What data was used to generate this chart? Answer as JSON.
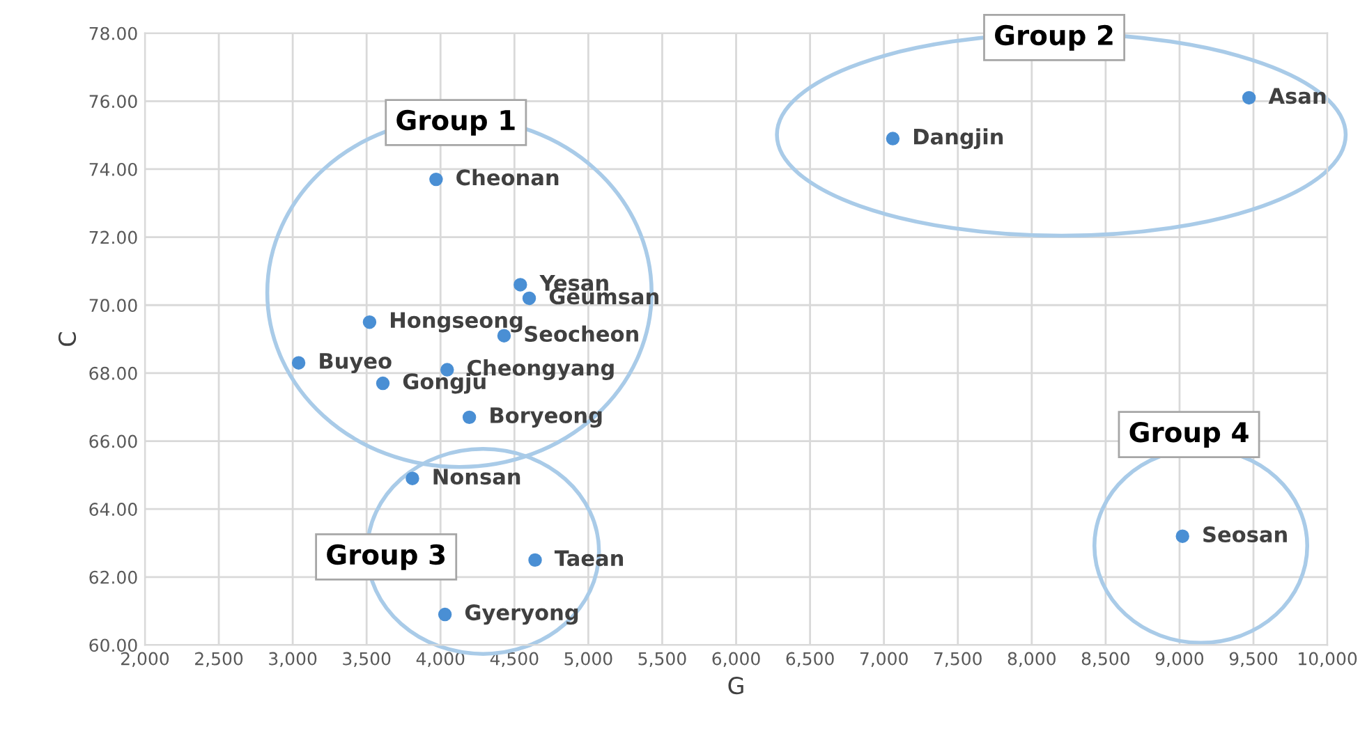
{
  "chart_data": {
    "type": "scatter",
    "xlabel": "G",
    "ylabel": "C",
    "x": [
      9470,
      7060,
      3970,
      4540,
      4600,
      3520,
      4430,
      3040,
      4045,
      3610,
      4195,
      3810,
      4640,
      4030,
      9020
    ],
    "series": [
      {
        "color": "#4a8fd4",
        "values": [
          76.1,
          74.9,
          73.7,
          70.6,
          70.2,
          69.5,
          69.1,
          68.3,
          68.1,
          67.7,
          66.7,
          64.9,
          62.5,
          60.9,
          63.2
        ]
      }
    ],
    "value_labels": [
      "Asan",
      "Dangjin",
      "Cheonan",
      "Yesan",
      "Geumsan",
      "Hongseong",
      "Seocheon",
      "Buyeo",
      "Cheongyang",
      "Gongju",
      "Boryeong",
      "Nonsan",
      "Taean",
      "Gyeryong",
      "Seosan"
    ],
    "annotations": [
      "Group 1",
      "Group 2",
      "Group 3",
      "Group 4"
    ],
    "xlim": [
      2000,
      10000
    ],
    "xticks": [
      {
        "value": 2000,
        "label": "2,000"
      },
      {
        "value": 2500,
        "label": "2,500"
      },
      {
        "value": 3000,
        "label": "3,000"
      },
      {
        "value": 3500,
        "label": "3,500"
      },
      {
        "value": 4000,
        "label": "4,000"
      },
      {
        "value": 4500,
        "label": "4,500"
      },
      {
        "value": 5000,
        "label": "5,000"
      },
      {
        "value": 5500,
        "label": "5,500"
      },
      {
        "value": 6000,
        "label": "6,000"
      },
      {
        "value": 6500,
        "label": "6,500"
      },
      {
        "value": 7000,
        "label": "7,000"
      },
      {
        "value": 7500,
        "label": "7,500"
      },
      {
        "value": 8000,
        "label": "8,000"
      },
      {
        "value": 8500,
        "label": "8,500"
      },
      {
        "value": 9000,
        "label": "9,000"
      },
      {
        "value": 9500,
        "label": "9,500"
      },
      {
        "value": 10000,
        "label": "10,000"
      }
    ],
    "ylim": [
      60,
      78
    ],
    "yticks": [
      {
        "value": 60,
        "label": "60.00"
      },
      {
        "value": 62,
        "label": "62.00"
      },
      {
        "value": 64,
        "label": "64.00"
      },
      {
        "value": 66,
        "label": "66.00"
      },
      {
        "value": 68,
        "label": "68.00"
      },
      {
        "value": 70,
        "label": "70.00"
      },
      {
        "value": 72,
        "label": "72.00"
      },
      {
        "value": 74,
        "label": "74.00"
      },
      {
        "value": 76,
        "label": "76.00"
      },
      {
        "value": 78,
        "label": "78.00"
      }
    ],
    "grid": true,
    "marker": "circle",
    "legend": false
  }
}
